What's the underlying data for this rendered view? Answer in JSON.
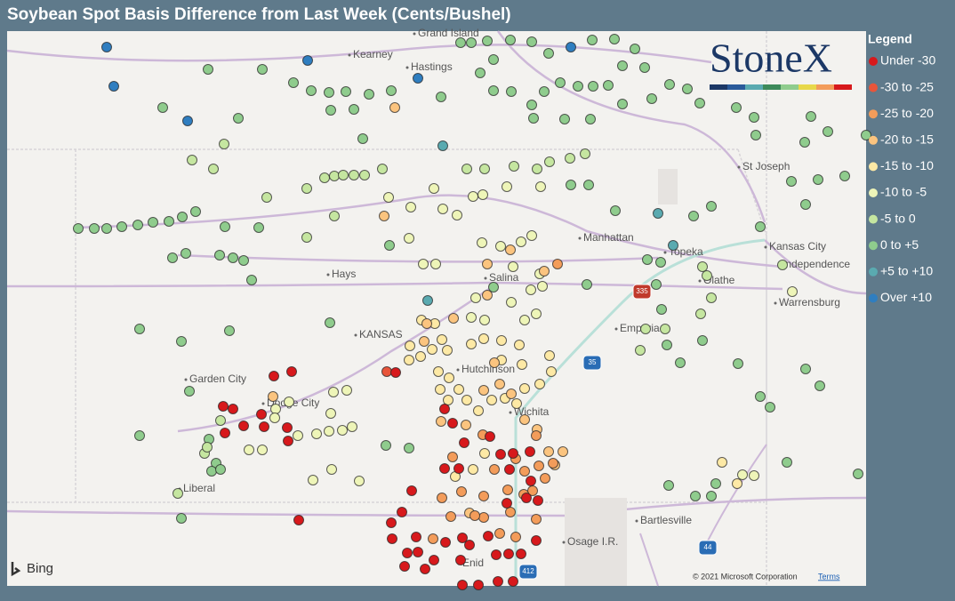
{
  "header": {
    "title": "Soybean Spot Basis Difference from Last Week (Cents/Bushel)"
  },
  "legend": {
    "title": "Legend",
    "items": [
      {
        "label": "Under -30",
        "color": "#d7191c"
      },
      {
        "label": "-30 to -25",
        "color": "#e8553a"
      },
      {
        "label": "-25 to -20",
        "color": "#f39c5a"
      },
      {
        "label": "-20 to -15",
        "color": "#fbc47f"
      },
      {
        "label": "-15 to -10",
        "color": "#fde9a5"
      },
      {
        "label": "-10 to -5",
        "color": "#eef5b8"
      },
      {
        "label": "-5 to 0",
        "color": "#c5e6a0"
      },
      {
        "label": "0 to +5",
        "color": "#8fcc8d"
      },
      {
        "label": "+5 to +10",
        "color": "#5aaab0"
      },
      {
        "label": "Over +10",
        "color": "#2f7ec0"
      }
    ]
  },
  "map": {
    "places": [
      "Grand Island",
      "Kearney",
      "Hastings",
      "St Joseph",
      "Manhattan",
      "Topeka",
      "Kansas City",
      "Independence",
      "Hays",
      "Salina",
      "Olathe",
      "Warrensburg",
      "KANSAS",
      "Emporia",
      "Hutchinson",
      "Garden City",
      "Dodge City",
      "Wichita",
      "Liberal",
      "Bartlesville",
      "Osage I.R.",
      "Enid"
    ],
    "shields": [
      "335",
      "35",
      "44",
      "412"
    ],
    "logo": "StoneX",
    "provider": "Bing",
    "copyright": "© 2021 Microsoft Corporation",
    "terms": "Terms"
  }
}
